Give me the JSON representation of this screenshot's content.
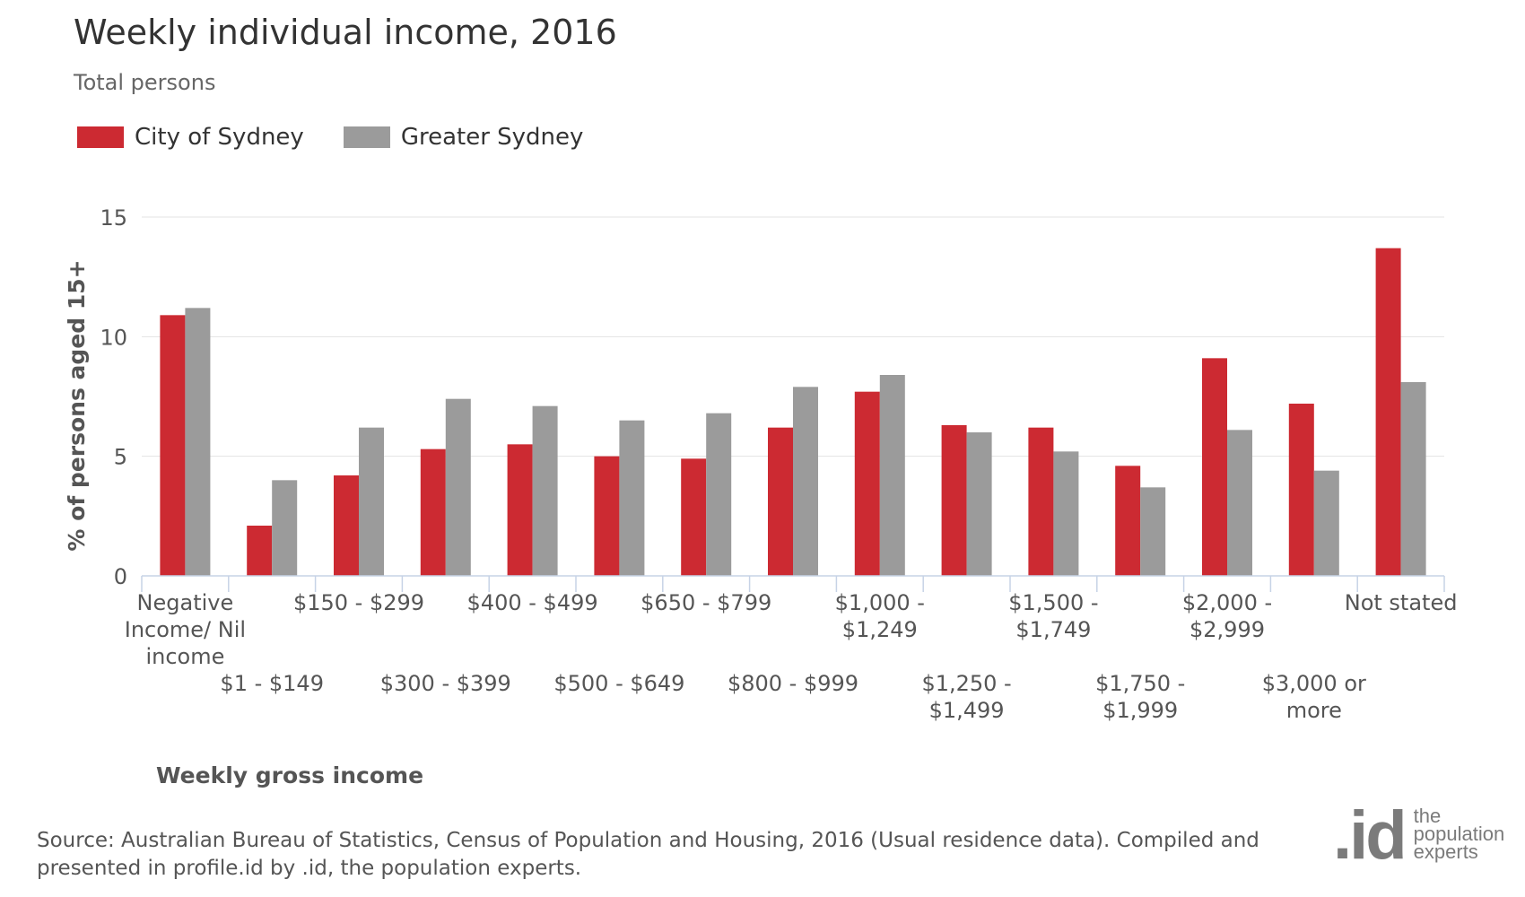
{
  "header": {
    "title": "Weekly individual income, 2016",
    "subtitle": "Total persons"
  },
  "legend": {
    "items": [
      {
        "label": "City of Sydney",
        "color": "#cc2a32"
      },
      {
        "label": "Greater Sydney",
        "color": "#9b9b9b"
      }
    ]
  },
  "footer": {
    "source": "Source: Australian Bureau of Statistics, Census of Population and Housing, 2016 (Usual residence data). Compiled and presented in profile.id by .id, the population experts.",
    "logo_mark": ".id",
    "logo_tag": [
      "the",
      "population",
      "experts"
    ]
  },
  "chart_data": {
    "type": "bar",
    "title": "Weekly individual income, 2016",
    "subtitle": "Total persons",
    "xlabel": "Weekly gross income",
    "ylabel": "% of persons aged 15+",
    "ylim": [
      0,
      15
    ],
    "yticks": [
      0,
      5,
      10,
      15
    ],
    "grid": true,
    "legend_position": "top-left",
    "categories": [
      "Negative Income/ Nil income",
      "$1 - $149",
      "$150 - $299",
      "$300 - $399",
      "$400 - $499",
      "$500 - $649",
      "$650 - $799",
      "$800 - $999",
      "$1,000 - $1,249",
      "$1,250 - $1,499",
      "$1,500 - $1,749",
      "$1,750 - $1,999",
      "$2,000 - $2,999",
      "$3,000 or more",
      "Not stated"
    ],
    "category_label_lines": [
      [
        "Negative",
        "Income/ Nil",
        "income"
      ],
      [
        "$1 - $149"
      ],
      [
        "$150 - $299"
      ],
      [
        "$300 - $399"
      ],
      [
        "$400 - $499"
      ],
      [
        "$500 - $649"
      ],
      [
        "$650 - $799"
      ],
      [
        "$800 - $999"
      ],
      [
        "$1,000 -",
        "$1,249"
      ],
      [
        "$1,250 -",
        "$1,499"
      ],
      [
        "$1,500 -",
        "$1,749"
      ],
      [
        "$1,750 -",
        "$1,999"
      ],
      [
        "$2,000 -",
        "$2,999"
      ],
      [
        "$3,000 or",
        "more"
      ],
      [
        "Not stated"
      ]
    ],
    "series": [
      {
        "name": "City of Sydney",
        "color": "#cc2a32",
        "values": [
          10.9,
          2.1,
          4.2,
          5.3,
          5.5,
          5.0,
          4.9,
          6.2,
          7.7,
          6.3,
          6.2,
          4.6,
          9.1,
          7.2,
          13.7
        ]
      },
      {
        "name": "Greater Sydney",
        "color": "#9b9b9b",
        "values": [
          11.2,
          4.0,
          6.2,
          7.4,
          7.1,
          6.5,
          6.8,
          7.9,
          8.4,
          6.0,
          5.2,
          3.7,
          6.1,
          4.4,
          8.1
        ]
      }
    ]
  }
}
